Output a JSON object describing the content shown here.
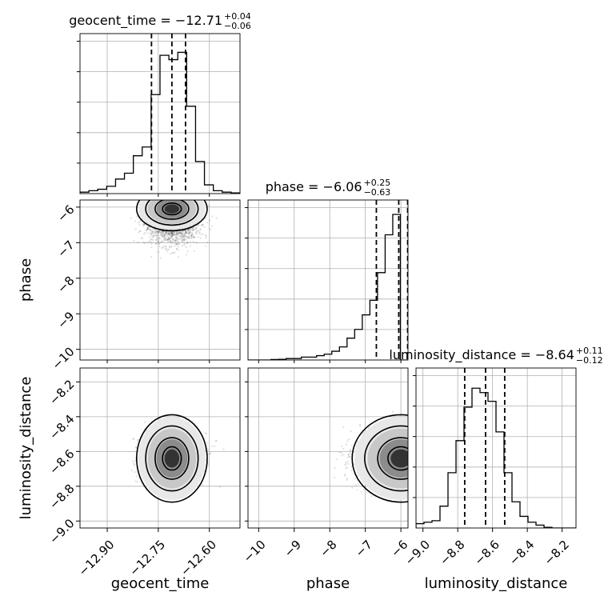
{
  "chart_data": {
    "type": "corner",
    "parameters": [
      "geocent_time",
      "phase",
      "luminosity_distance"
    ],
    "titles": [
      {
        "name": "geocent_time",
        "median": "−12.71",
        "upper": "+0.04",
        "lower": "−0.06"
      },
      {
        "name": "phase",
        "median": "−6.06",
        "upper": "+0.25",
        "lower": "−0.63"
      },
      {
        "name": "luminosity_distance",
        "median": "−8.64",
        "upper": "+0.11",
        "lower": "−0.12"
      }
    ],
    "axis_labels": {
      "x": [
        "geocent_time",
        "phase",
        "luminosity_distance"
      ],
      "y": [
        "phase",
        "luminosity_distance"
      ]
    },
    "ranges": {
      "geocent_time": [
        -12.98,
        -12.51
      ],
      "phase": [
        -10.3,
        -5.8
      ],
      "luminosity_distance": [
        -9.04,
        -8.12
      ]
    },
    "ticks": {
      "geocent_time": {
        "values": [
          -12.9,
          -12.75,
          -12.6
        ],
        "labels": [
          "−12.90",
          "−12.75",
          "−12.60"
        ]
      },
      "phase": {
        "values": [
          -10,
          -9,
          -8,
          -7,
          -6
        ],
        "labels": [
          "−10",
          "−9",
          "−8",
          "−7",
          "−6"
        ]
      },
      "luminosity_distance": {
        "values": [
          -9.0,
          -8.8,
          -8.6,
          -8.4,
          -8.2
        ],
        "labels": [
          "−9.0",
          "−8.8",
          "−8.6",
          "−8.4",
          "−8.2"
        ]
      }
    },
    "quantiles": {
      "geocent_time": [
        -12.77,
        -12.71,
        -12.67
      ],
      "phase": [
        -6.69,
        -6.06,
        -5.81
      ],
      "luminosity_distance": [
        -8.76,
        -8.64,
        -8.53
      ]
    },
    "histograms": {
      "geocent_time": [
        0.01,
        0.02,
        0.03,
        0.05,
        0.1,
        0.14,
        0.26,
        0.32,
        0.68,
        0.95,
        0.92,
        0.97,
        0.6,
        0.22,
        0.06,
        0.02,
        0.01,
        0.005
      ],
      "phase": [
        0.0,
        0.0,
        0.0,
        0.003,
        0.005,
        0.01,
        0.01,
        0.02,
        0.02,
        0.03,
        0.04,
        0.06,
        0.09,
        0.15,
        0.21,
        0.31,
        0.41,
        0.6,
        0.86,
        1.0,
        0.0
      ],
      "luminosity_distance": [
        0.03,
        0.04,
        0.05,
        0.15,
        0.38,
        0.6,
        0.83,
        0.96,
        0.93,
        0.87,
        0.66,
        0.38,
        0.18,
        0.08,
        0.04,
        0.02,
        0.005,
        0.0,
        0.0,
        0.0
      ]
    },
    "posterior_centers": {
      "geocent_time__phase": [
        -12.71,
        -6.15
      ],
      "geocent_time__luminosity_distance": [
        -12.71,
        -8.64
      ],
      "phase__luminosity_distance": [
        -6.0,
        -8.64
      ]
    },
    "grid": true
  }
}
